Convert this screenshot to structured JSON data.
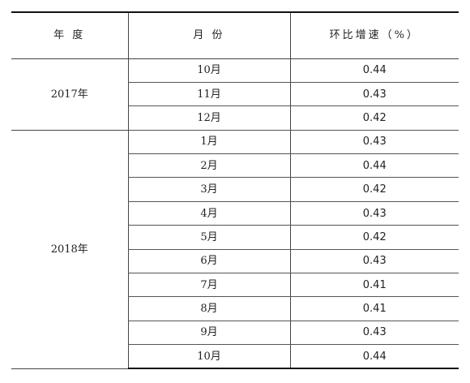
{
  "table": {
    "headers": [
      "年 度",
      "月 份",
      "环比增速（%）"
    ],
    "groups": [
      {
        "year": "2017年",
        "rows": [
          {
            "month": "10月",
            "value": "0.44"
          },
          {
            "month": "11月",
            "value": "0.43"
          },
          {
            "month": "12月",
            "value": "0.42"
          }
        ]
      },
      {
        "year": "2018年",
        "rows": [
          {
            "month": "1月",
            "value": "0.43"
          },
          {
            "month": "2月",
            "value": "0.44"
          },
          {
            "month": "3月",
            "value": "0.42"
          },
          {
            "month": "4月",
            "value": "0.43"
          },
          {
            "month": "5月",
            "value": "0.42"
          },
          {
            "month": "6月",
            "value": "0.43"
          },
          {
            "month": "7月",
            "value": "0.41"
          },
          {
            "month": "8月",
            "value": "0.41"
          },
          {
            "month": "9月",
            "value": "0.43"
          },
          {
            "month": "10月",
            "value": "0.44"
          }
        ]
      }
    ]
  }
}
